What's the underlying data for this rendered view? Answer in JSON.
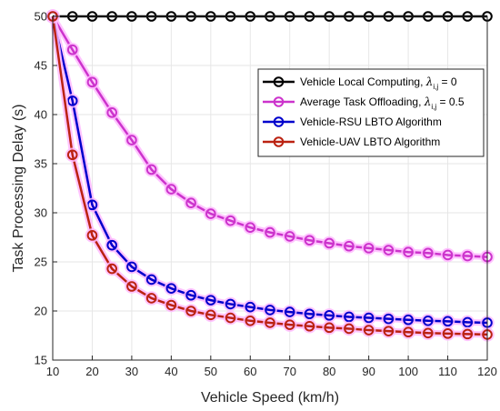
{
  "chart_data": {
    "type": "line",
    "xlabel": "Vehicle Speed (km/h)",
    "ylabel": "Task Processing Delay (s)",
    "xlim": [
      10,
      120
    ],
    "ylim": [
      15,
      50
    ],
    "xticks": [
      10,
      20,
      30,
      40,
      50,
      60,
      70,
      80,
      90,
      100,
      110,
      120
    ],
    "yticks": [
      15,
      20,
      25,
      30,
      35,
      40,
      45,
      50
    ],
    "grid": true,
    "legend_position": "top-right",
    "x": [
      10,
      15,
      20,
      25,
      30,
      35,
      40,
      45,
      50,
      55,
      60,
      65,
      70,
      75,
      80,
      85,
      90,
      95,
      100,
      105,
      110,
      115,
      120
    ],
    "series": [
      {
        "name": "Vehicle Local Computing, λi,j = 0",
        "legend_prefix": "Vehicle Local Computing, ",
        "legend_symbol": "λ",
        "legend_sub": "i,j",
        "legend_suffix": " = 0",
        "color": "#000000",
        "glow": "none",
        "values": [
          50,
          50,
          50,
          50,
          50,
          50,
          50,
          50,
          50,
          50,
          50,
          50,
          50,
          50,
          50,
          50,
          50,
          50,
          50,
          50,
          50,
          50,
          50
        ]
      },
      {
        "name": "Average Task Offloading, λi,j = 0.5",
        "legend_prefix": "Average Task Offloading, ",
        "legend_symbol": "λ",
        "legend_sub": "i,j",
        "legend_suffix": " = 0.5",
        "color": "#cc33cc",
        "glow": "#ffbbff",
        "values": [
          50,
          46.6,
          43.3,
          40.2,
          37.4,
          34.4,
          32.4,
          31.0,
          29.9,
          29.2,
          28.5,
          28.0,
          27.6,
          27.2,
          26.9,
          26.6,
          26.4,
          26.2,
          26.0,
          25.9,
          25.7,
          25.6,
          25.5
        ]
      },
      {
        "name": "Vehicle-RSU LBTO Algorithm",
        "legend_prefix": "Vehicle-RSU LBTO Algorithm",
        "color": "#0000cc",
        "glow": "#ffbbff",
        "values": [
          50,
          41.4,
          30.8,
          26.7,
          24.5,
          23.2,
          22.3,
          21.6,
          21.1,
          20.7,
          20.4,
          20.1,
          19.9,
          19.7,
          19.55,
          19.4,
          19.3,
          19.2,
          19.1,
          19.0,
          18.95,
          18.85,
          18.8
        ]
      },
      {
        "name": "Vehicle-UAV LBTO Algorithm",
        "legend_prefix": "Vehicle-UAV LBTO Algorithm",
        "color": "#bb2211",
        "glow": "#ffbbff",
        "values": [
          50,
          35.9,
          27.7,
          24.3,
          22.5,
          21.3,
          20.6,
          20.0,
          19.6,
          19.3,
          19.0,
          18.8,
          18.6,
          18.45,
          18.3,
          18.2,
          18.05,
          17.95,
          17.85,
          17.75,
          17.7,
          17.65,
          17.6
        ]
      }
    ]
  }
}
